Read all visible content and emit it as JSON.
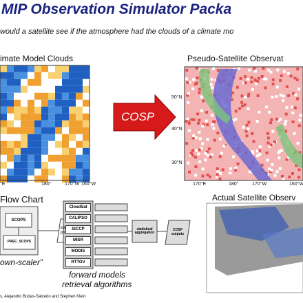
{
  "header": {
    "title": "MIP Observation Simulator Packa",
    "subtitle": "would a satellite see if the atmosphere had the clouds of a climate mo"
  },
  "left_panel": {
    "title": "imate Model Clouds",
    "lon_labels": [
      "°E",
      "180°",
      "170°W",
      "160°W"
    ]
  },
  "arrow": {
    "label": "COSP"
  },
  "right_panel": {
    "title": "Pseudo-Satellite Observat",
    "lat_labels": [
      "50°N",
      "40°N",
      "30°N"
    ],
    "lon_labels": [
      "170°E",
      "180°",
      "170°W",
      "160°W"
    ]
  },
  "flowchart": {
    "title": "Flow Chart",
    "scops": "SCOPS",
    "prec_scops": "PREC_SCOPS",
    "subgrid": "subgrid profiles",
    "models": [
      "CloudSat",
      "CALIPSO",
      "ISCCP",
      "MISR",
      "MODIS",
      "RTTOV"
    ],
    "aggregation": "statistical aggregation",
    "outputs": "COSP outputs",
    "downscaler": "own-scaler”",
    "forward_1": "forward models",
    "forward_2": "retrieval algorithms"
  },
  "actual_panel": {
    "title": "Actual Satellite Observ"
  },
  "footer": "s, Alejandro Bodas-Salcedo and Stephen Klein"
}
